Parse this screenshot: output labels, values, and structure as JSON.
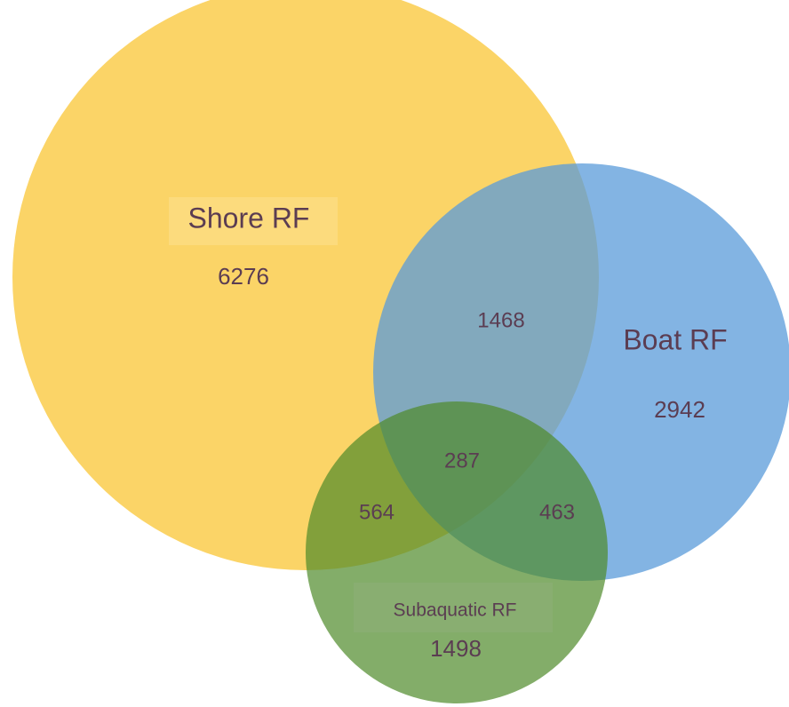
{
  "sets": [
    {
      "label": "Shore RF",
      "count": 6276
    },
    {
      "label": "Boat RF",
      "count": 2942
    },
    {
      "label": "Subaquatic RF",
      "count": 1498
    }
  ],
  "intersections": [
    {
      "count": 1468
    },
    {
      "count": 564
    },
    {
      "count": 463
    },
    {
      "count": 287
    }
  ]
}
